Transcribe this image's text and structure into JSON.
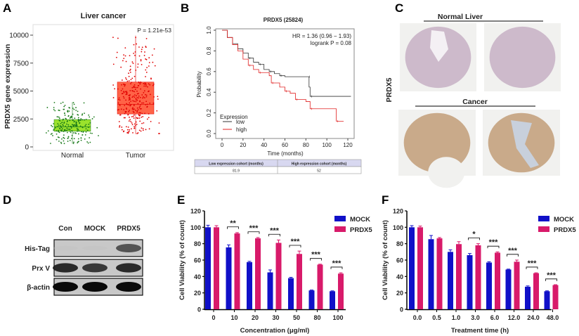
{
  "panel_labels": [
    "A",
    "B",
    "C",
    "D",
    "E",
    "F"
  ],
  "chart_data": [
    {
      "panel": "A",
      "type": "box",
      "title": "Liver cancer",
      "ylabel": "PRDX5 gene expression",
      "ylim": [
        0,
        10500
      ],
      "yticks": [
        "0",
        "2500",
        "5000",
        "7500",
        "10000"
      ],
      "ytick_values": [
        0,
        2500,
        5000,
        7500,
        10000
      ],
      "categories": [
        "Normal",
        "Tumor"
      ],
      "boxes": [
        {
          "name": "Normal",
          "whisker_low": 300,
          "q1": 1400,
          "median": 1800,
          "q3": 2450,
          "whisker_high": 4000,
          "color": "#9be22c",
          "point_color": "#1a7a1a"
        },
        {
          "name": "Tumor",
          "whisker_low": 1150,
          "q1": 2950,
          "median": 3800,
          "q3": 5800,
          "whisker_high": 9950,
          "color": "#ff6347",
          "point_color": "#e00000"
        }
      ],
      "annotation": "P = 1.21e-53",
      "grid": false
    },
    {
      "panel": "B",
      "type": "line",
      "title": "PRDX5 (25824)",
      "xlabel": "Time (months)",
      "ylabel": "Probability",
      "xlim": [
        0,
        125
      ],
      "ylim": [
        0,
        1
      ],
      "xticks": [
        "0",
        "20",
        "40",
        "60",
        "80",
        "100",
        "120"
      ],
      "xtick_values": [
        0,
        20,
        40,
        60,
        80,
        100,
        120
      ],
      "yticks": [
        "0.0",
        "0.2",
        "0.4",
        "0.6",
        "0.8",
        "1.0"
      ],
      "ytick_values": [
        0,
        0.2,
        0.4,
        0.6,
        0.8,
        1.0
      ],
      "annotations": [
        "HR = 1.36 (0.96 − 1.93)",
        "logrank P = 0.08"
      ],
      "legend_title": "Expression",
      "legend_position": "bottom-left",
      "series": [
        {
          "name": "low",
          "color": "#333333",
          "x": [
            0,
            5,
            10,
            15,
            20,
            25,
            30,
            35,
            40,
            45,
            50,
            55,
            60,
            82,
            83,
            84,
            123
          ],
          "y": [
            1,
            0.93,
            0.87,
            0.82,
            0.78,
            0.73,
            0.69,
            0.67,
            0.62,
            0.6,
            0.58,
            0.56,
            0.55,
            0.55,
            0.45,
            0.36,
            0.36
          ]
        },
        {
          "name": "high",
          "color": "#e02020",
          "x": [
            0,
            5,
            10,
            15,
            20,
            25,
            30,
            35,
            45,
            47,
            55,
            60,
            65,
            70,
            80,
            84,
            105,
            109,
            116
          ],
          "y": [
            1,
            0.93,
            0.86,
            0.8,
            0.72,
            0.66,
            0.62,
            0.59,
            0.56,
            0.49,
            0.45,
            0.41,
            0.39,
            0.33,
            0.31,
            0.24,
            0.24,
            0.12,
            0.12
          ]
        }
      ],
      "table": {
        "headers": [
          "Low expression cohort (months)",
          "High expression cohort (months)"
        ],
        "values": [
          "81.9",
          "52"
        ]
      }
    },
    {
      "panel": "E",
      "type": "bar",
      "xlabel": "Concentration (μg/ml)",
      "ylabel": "Cell Viability (% of count)",
      "ylim": [
        0,
        120
      ],
      "yticks": [
        "0",
        "20",
        "40",
        "60",
        "80",
        "100",
        "120"
      ],
      "ytick_values": [
        0,
        20,
        40,
        60,
        80,
        100,
        120
      ],
      "categories": [
        "0",
        "10",
        "20",
        "30",
        "50",
        "80",
        "100"
      ],
      "legend_position": "top-right",
      "series": [
        {
          "name": "MOCK",
          "color": "#1010c8",
          "values": [
            100,
            75.5,
            57.5,
            45,
            38,
            23,
            22
          ],
          "errors": [
            2.5,
            3,
            1,
            3,
            1,
            0.5,
            0.5
          ]
        },
        {
          "name": "PRDX5",
          "color": "#d81a6a",
          "values": [
            100,
            92.5,
            86.5,
            81,
            67.5,
            54.5,
            43.5
          ],
          "errors": [
            2,
            1,
            1,
            3.5,
            3.5,
            0.5,
            1
          ]
        }
      ],
      "significance": [
        "",
        "**",
        "***",
        "***",
        "***",
        "***",
        "***"
      ]
    },
    {
      "panel": "F",
      "type": "bar",
      "xlabel": "Treatment time (h)",
      "ylabel": "Cell Viability (% of count)",
      "ylim": [
        0,
        120
      ],
      "yticks": [
        "0",
        "20",
        "40",
        "60",
        "80",
        "100",
        "120"
      ],
      "ytick_values": [
        0,
        20,
        40,
        60,
        80,
        100,
        120
      ],
      "categories": [
        "0.0",
        "0.5",
        "1.0",
        "3.0",
        "6.0",
        "12.0",
        "24.0",
        "48.0"
      ],
      "legend_position": "top-right",
      "series": [
        {
          "name": "MOCK",
          "color": "#1010c8",
          "values": [
            100,
            85.5,
            70,
            66,
            57,
            48.5,
            27.5,
            22
          ],
          "errors": [
            2,
            4.5,
            2.5,
            2,
            1,
            0.5,
            1,
            0.5
          ]
        },
        {
          "name": "PRDX5",
          "color": "#d81a6a",
          "values": [
            100,
            86.5,
            79.5,
            78,
            69,
            58,
            44,
            29.5
          ],
          "errors": [
            1.5,
            1,
            3,
            2,
            1,
            2,
            0.5,
            0.5
          ]
        }
      ],
      "significance": [
        "",
        "",
        "",
        "*",
        "***",
        "***",
        "***",
        "***"
      ]
    }
  ],
  "panel_c": {
    "side_label": "PRDX5",
    "groups": [
      {
        "label": "Normal  Liver",
        "tissue_color": "#c9b4c6"
      },
      {
        "label": "Cancer",
        "tissue_color": "#c4a27e"
      }
    ]
  },
  "panel_d": {
    "lanes": [
      "Con",
      "MOCK",
      "PRDX5"
    ],
    "rows": [
      {
        "label": "His-Tag",
        "intensities": [
          0.05,
          0.05,
          0.75
        ]
      },
      {
        "label": "Prx V",
        "intensities": [
          0.9,
          0.85,
          0.9
        ]
      },
      {
        "label": "β-actin",
        "intensities": [
          1,
          1,
          1
        ]
      }
    ]
  }
}
